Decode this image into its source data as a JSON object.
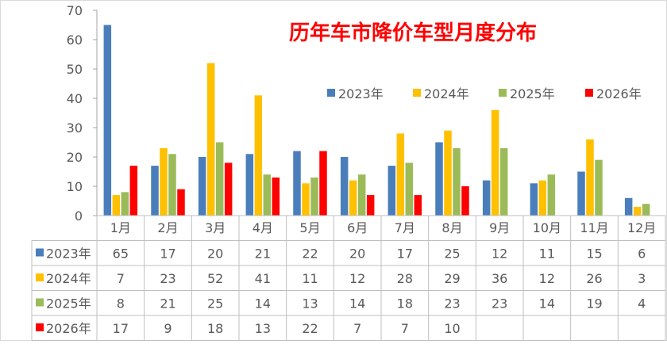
{
  "chart_data": {
    "type": "bar",
    "title": "历年车市降价车型月度分布",
    "categories": [
      "1月",
      "2月",
      "3月",
      "4月",
      "5月",
      "6月",
      "7月",
      "8月",
      "9月",
      "10月",
      "11月",
      "12月"
    ],
    "ylim": [
      0,
      70
    ],
    "yticks": [
      0,
      10,
      20,
      30,
      40,
      50,
      60,
      70
    ],
    "grid": false,
    "legend_position": "top-right",
    "series": [
      {
        "name": "2023年",
        "color": "#4a7ebb",
        "values": [
          65,
          17,
          20,
          21,
          22,
          20,
          17,
          25,
          12,
          11,
          15,
          6
        ]
      },
      {
        "name": "2024年",
        "color": "#ffc000",
        "values": [
          7,
          23,
          52,
          41,
          11,
          12,
          28,
          29,
          36,
          12,
          26,
          3
        ]
      },
      {
        "name": "2025年",
        "color": "#9bbb59",
        "values": [
          8,
          21,
          25,
          14,
          13,
          14,
          18,
          23,
          23,
          14,
          19,
          4
        ]
      },
      {
        "name": "2026年",
        "color": "#ff0000",
        "values": [
          17,
          9,
          18,
          13,
          22,
          7,
          7,
          10,
          null,
          null,
          null,
          null
        ]
      }
    ],
    "data_table": true
  },
  "colors": {
    "title": "#ff0000",
    "axis": "#a6a6a6",
    "text": "#595959",
    "table_border": "#bfbfbf"
  }
}
